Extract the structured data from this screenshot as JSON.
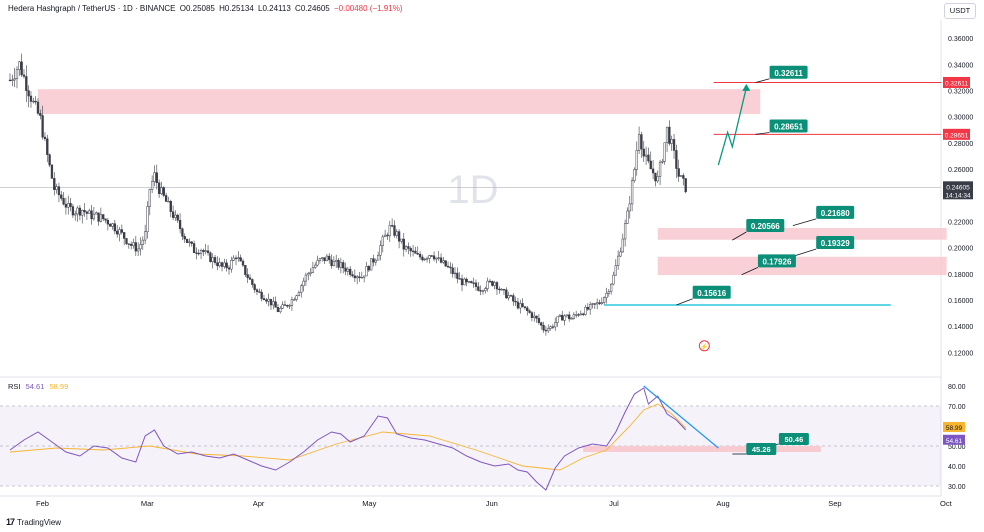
{
  "header": {
    "symbol": "Hedera Hashgraph / TetherUS · 1D · BINANCE",
    "open": "O0.25085",
    "high": "H0.25134",
    "low": "L0.24113",
    "close": "C0.24605",
    "change": "−0.00480 (−1.91%)"
  },
  "currency_button": "USDT",
  "watermark": "1D",
  "rsi_header": {
    "label": "RSI",
    "value1": "54.61",
    "value2": "58.99"
  },
  "footer_logo": "TradingView",
  "colors": {
    "up": "#089981",
    "down": "#f23645",
    "resistance_zone": "#f8c8cf",
    "callout": "#0b8f78",
    "rsi_line": "#7e57c2",
    "rsi_ma": "#f7b530",
    "trend_line": "#2196f3",
    "support_line": "#00bcd4"
  },
  "chart_data": [
    {
      "type": "candlestick",
      "name": "Hedera Hashgraph / TetherUS",
      "x_labels": [
        "Feb",
        "Mar",
        "Apr",
        "May",
        "Jun",
        "Jul",
        "Aug",
        "Sep",
        "Oct"
      ],
      "y_ticks": [
        "0.36000",
        "0.34000",
        "0.32000",
        "0.30000",
        "0.28000",
        "0.26000",
        "0.24000",
        "0.22000",
        "0.20000",
        "0.18000",
        "0.16000",
        "0.14000",
        "0.12000"
      ],
      "ylim": [
        0.105,
        0.37
      ],
      "close_path": [
        [
          0,
          0.328
        ],
        [
          4,
          0.34
        ],
        [
          7,
          0.325
        ],
        [
          10,
          0.31
        ],
        [
          13,
          0.298
        ],
        [
          16,
          0.27
        ],
        [
          19,
          0.245
        ],
        [
          22,
          0.238
        ],
        [
          25,
          0.23
        ],
        [
          28,
          0.228
        ],
        [
          31,
          0.229
        ],
        [
          34,
          0.225
        ],
        [
          37,
          0.224
        ],
        [
          40,
          0.222
        ],
        [
          43,
          0.219
        ],
        [
          46,
          0.214
        ],
        [
          49,
          0.208
        ],
        [
          52,
          0.202
        ],
        [
          55,
          0.199
        ],
        [
          58,
          0.21
        ],
        [
          60,
          0.245
        ],
        [
          62,
          0.255
        ],
        [
          64,
          0.245
        ],
        [
          67,
          0.235
        ],
        [
          70,
          0.225
        ],
        [
          73,
          0.215
        ],
        [
          76,
          0.205
        ],
        [
          79,
          0.198
        ],
        [
          82,
          0.199
        ],
        [
          85,
          0.193
        ],
        [
          88,
          0.19
        ],
        [
          91,
          0.185
        ],
        [
          94,
          0.186
        ],
        [
          97,
          0.194
        ],
        [
          100,
          0.184
        ],
        [
          103,
          0.175
        ],
        [
          106,
          0.166
        ],
        [
          109,
          0.163
        ],
        [
          112,
          0.158
        ],
        [
          115,
          0.152
        ],
        [
          118,
          0.155
        ],
        [
          121,
          0.16
        ],
        [
          124,
          0.168
        ],
        [
          127,
          0.178
        ],
        [
          130,
          0.185
        ],
        [
          133,
          0.19
        ],
        [
          136,
          0.192
        ],
        [
          139,
          0.188
        ],
        [
          142,
          0.186
        ],
        [
          145,
          0.183
        ],
        [
          148,
          0.18
        ],
        [
          151,
          0.178
        ],
        [
          154,
          0.186
        ],
        [
          157,
          0.193
        ],
        [
          160,
          0.205
        ],
        [
          163,
          0.215
        ],
        [
          166,
          0.21
        ],
        [
          169,
          0.2
        ],
        [
          172,
          0.197
        ],
        [
          175,
          0.193
        ],
        [
          178,
          0.193
        ],
        [
          181,
          0.196
        ],
        [
          184,
          0.19
        ],
        [
          187,
          0.186
        ],
        [
          190,
          0.181
        ],
        [
          193,
          0.175
        ],
        [
          196,
          0.172
        ],
        [
          199,
          0.171
        ],
        [
          202,
          0.169
        ],
        [
          205,
          0.172
        ],
        [
          208,
          0.174
        ],
        [
          211,
          0.166
        ],
        [
          214,
          0.163
        ],
        [
          217,
          0.157
        ],
        [
          220,
          0.154
        ],
        [
          223,
          0.15
        ],
        [
          226,
          0.145
        ],
        [
          229,
          0.138
        ],
        [
          232,
          0.139
        ],
        [
          235,
          0.145
        ],
        [
          238,
          0.148
        ],
        [
          241,
          0.146
        ],
        [
          244,
          0.15
        ],
        [
          247,
          0.152
        ],
        [
          250,
          0.155
        ],
        [
          253,
          0.158
        ],
        [
          256,
          0.165
        ],
        [
          259,
          0.178
        ],
        [
          262,
          0.2
        ],
        [
          265,
          0.225
        ],
        [
          268,
          0.26
        ],
        [
          270,
          0.29
        ],
        [
          272,
          0.27
        ],
        [
          275,
          0.26
        ],
        [
          278,
          0.252
        ],
        [
          280,
          0.27
        ],
        [
          282,
          0.29
        ],
        [
          284,
          0.278
        ],
        [
          287,
          0.255
        ],
        [
          290,
          0.246
        ]
      ],
      "annotations": {
        "resistance_zone": [
          0.302,
          0.321
        ],
        "support_zone_1": [
          0.206,
          0.215
        ],
        "support_zone_2": [
          0.179,
          0.193
        ],
        "level_lines": [
          0.32611,
          0.28651,
          0.15616
        ],
        "price_labels": [
          "0.32611",
          "0.28651",
          "0.21680",
          "0.20566",
          "0.19329",
          "0.17926",
          "0.15616"
        ],
        "last_price": "0.24605",
        "countdown": "14:14:34",
        "axis_badges": [
          "0.32611",
          "0.28651"
        ]
      }
    },
    {
      "type": "line",
      "name": "RSI",
      "ylim": [
        27,
        83
      ],
      "y_ticks": [
        "80.00",
        "70.00",
        "60.00",
        "50.00",
        "40.00",
        "30.00"
      ],
      "rsi_path": [
        [
          0,
          48
        ],
        [
          6,
          53
        ],
        [
          12,
          57
        ],
        [
          18,
          52
        ],
        [
          24,
          47
        ],
        [
          30,
          45
        ],
        [
          36,
          50
        ],
        [
          42,
          49
        ],
        [
          48,
          44
        ],
        [
          54,
          42
        ],
        [
          58,
          55
        ],
        [
          62,
          58
        ],
        [
          66,
          50
        ],
        [
          72,
          46
        ],
        [
          78,
          47
        ],
        [
          84,
          45
        ],
        [
          90,
          44
        ],
        [
          96,
          46
        ],
        [
          102,
          43
        ],
        [
          108,
          40
        ],
        [
          114,
          38
        ],
        [
          120,
          42
        ],
        [
          126,
          47
        ],
        [
          132,
          53
        ],
        [
          138,
          57
        ],
        [
          142,
          56
        ],
        [
          146,
          52
        ],
        [
          152,
          55
        ],
        [
          158,
          65
        ],
        [
          162,
          64
        ],
        [
          166,
          56
        ],
        [
          172,
          54
        ],
        [
          178,
          53
        ],
        [
          184,
          51
        ],
        [
          190,
          49
        ],
        [
          196,
          45
        ],
        [
          202,
          42
        ],
        [
          208,
          40
        ],
        [
          214,
          41
        ],
        [
          218,
          38
        ],
        [
          222,
          37
        ],
        [
          226,
          32
        ],
        [
          230,
          28
        ],
        [
          234,
          39
        ],
        [
          238,
          45
        ],
        [
          244,
          49
        ],
        [
          250,
          51
        ],
        [
          256,
          50
        ],
        [
          260,
          57
        ],
        [
          264,
          67
        ],
        [
          268,
          76
        ],
        [
          272,
          79
        ],
        [
          274,
          71
        ],
        [
          278,
          75
        ],
        [
          282,
          66
        ],
        [
          286,
          63
        ],
        [
          290,
          58
        ]
      ],
      "ma_path": [
        [
          0,
          47
        ],
        [
          20,
          49
        ],
        [
          40,
          48
        ],
        [
          60,
          50
        ],
        [
          80,
          46
        ],
        [
          100,
          45
        ],
        [
          120,
          43
        ],
        [
          140,
          51
        ],
        [
          160,
          57
        ],
        [
          180,
          55
        ],
        [
          200,
          48
        ],
        [
          220,
          40
        ],
        [
          236,
          38
        ],
        [
          246,
          44
        ],
        [
          256,
          48
        ],
        [
          266,
          60
        ],
        [
          272,
          68
        ],
        [
          278,
          71
        ],
        [
          284,
          66
        ],
        [
          290,
          59
        ]
      ],
      "trend_line": [
        [
          272,
          80
        ],
        [
          304,
          49
        ]
      ],
      "zone": [
        47,
        50
      ],
      "values": [
        "58.99",
        "54.61"
      ],
      "labels": [
        "50.46",
        "45.26"
      ]
    }
  ]
}
